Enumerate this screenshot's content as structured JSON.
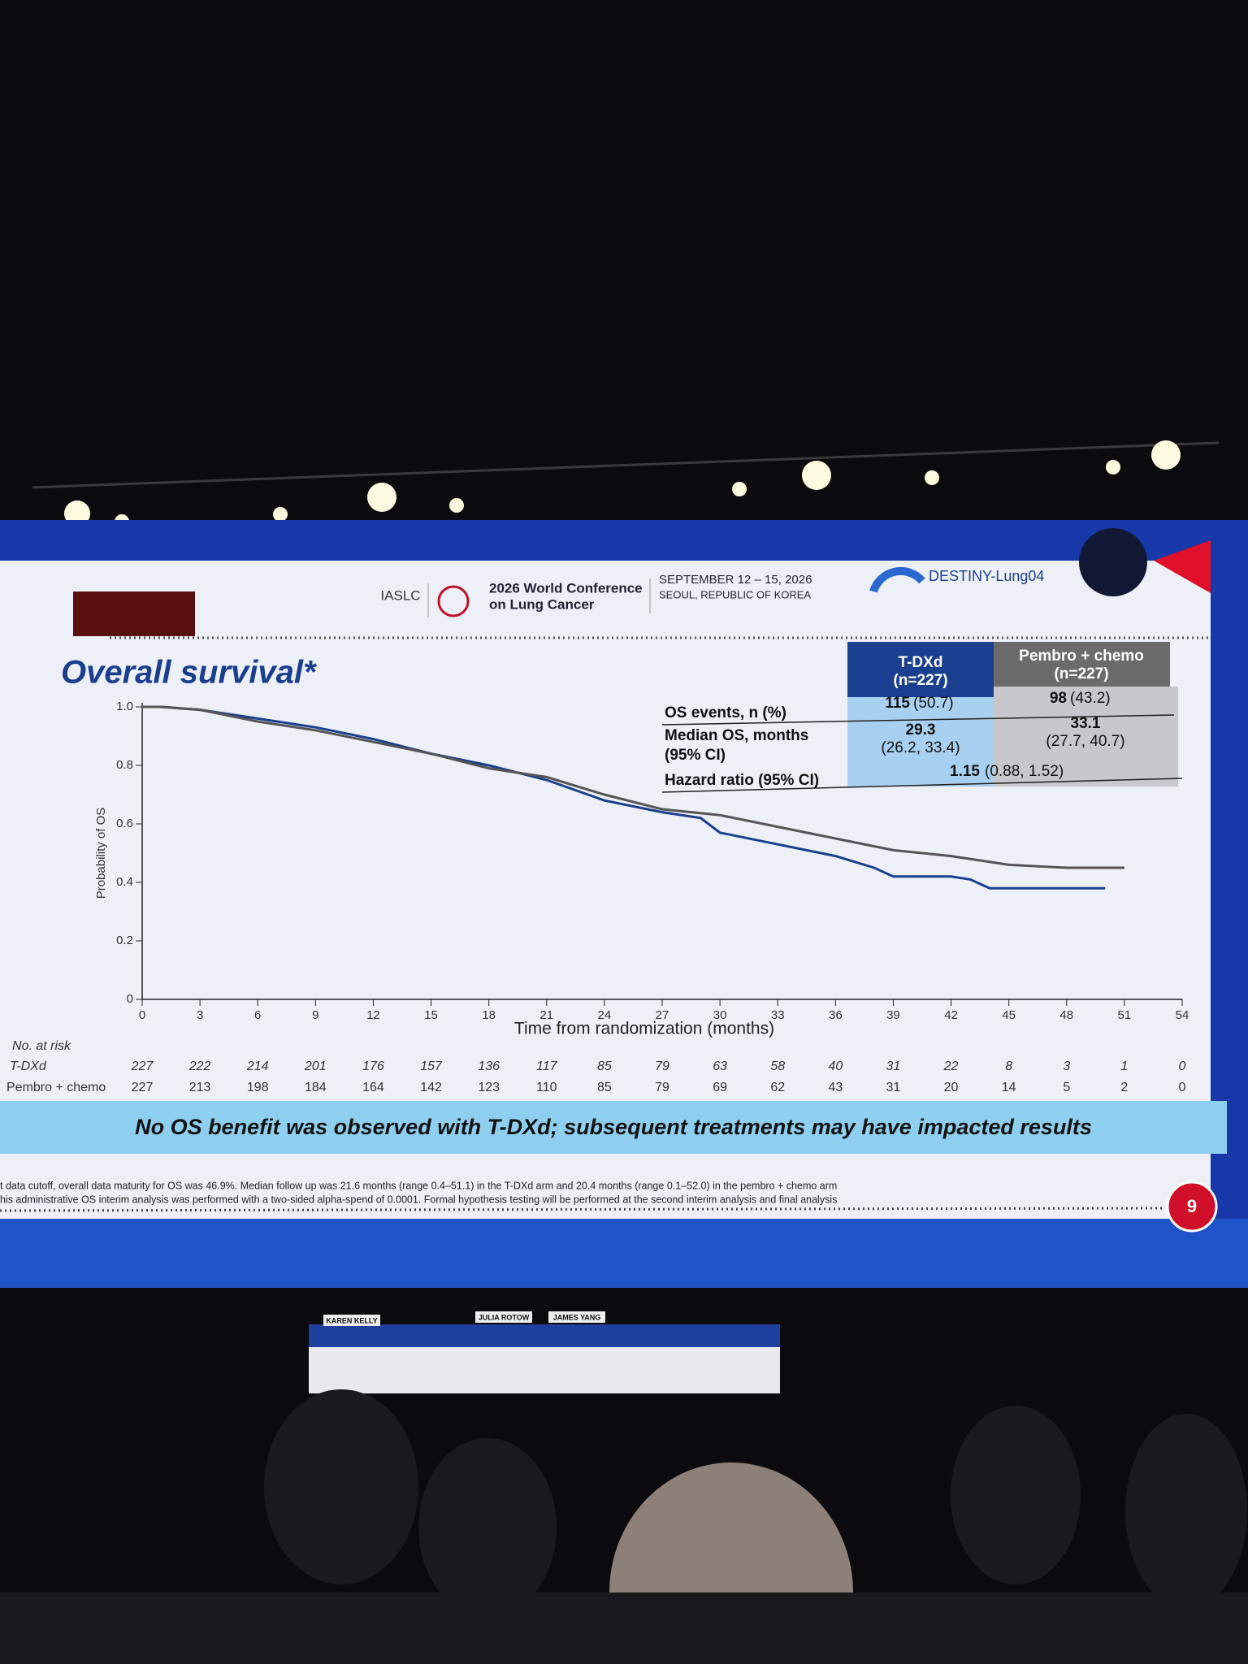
{
  "slide": {
    "header": {
      "society": "IASLC",
      "conference": [
        "2026 World Conference",
        "on Lung Cancer"
      ],
      "dates": "SEPTEMBER 12 – 15, 2026",
      "location": "SEOUL, REPUBLIC OF KOREA",
      "trial": "DESTINY-Lung04"
    },
    "table": {
      "columns": [
        [
          "T-DXd",
          "(n=227)"
        ],
        [
          "Pembro + chemo",
          "(n=227)"
        ]
      ],
      "rows": [
        {
          "label": [
            "OS events, n (%)"
          ],
          "cells": [
            [
              "115",
              "(50.7)"
            ],
            [
              "98",
              "(43.2)"
            ]
          ]
        },
        {
          "label": [
            "Median OS, months",
            "(95% CI)"
          ],
          "cells": [
            [
              "29.3",
              "(26.2, 33.4)"
            ],
            [
              "33.1",
              "(27.7, 40.7)"
            ]
          ]
        },
        {
          "label": [
            "Hazard ratio (95% CI)"
          ],
          "cells": [
            [
              "1.15",
              "(0.88, 1.52)"
            ]
          ]
        }
      ]
    },
    "banner": "No OS benefit was observed with T-DXd; subsequent treatments may have impacted results",
    "footnotes": [
      "t data cutoff, overall data maturity for OS was 46.9%. Median follow up was 21.6 months (range 0.4–51.1) in the T-DXd arm and 20.4 months (range 0.1–52.0) in the pembro + chemo arm",
      "his administrative OS interim analysis was performed with a two-sided alpha-spend of 0.0001. Formal hypothesis testing will be performed at the second interim analysis and final analysis"
    ],
    "page_number": "9",
    "name_cards": [
      "KAREN KELLY",
      "JULIA ROTOW",
      "JAMES YANG"
    ]
  },
  "chart_data": {
    "type": "line",
    "title": "Overall survival*",
    "xlabel": "Time from randomization (months)",
    "ylabel": "Probability of OS",
    "xlim": [
      0,
      54
    ],
    "ylim": [
      0,
      1
    ],
    "xticks": [
      0,
      3,
      6,
      9,
      12,
      15,
      18,
      21,
      24,
      27,
      30,
      33,
      36,
      39,
      42,
      45,
      48,
      51,
      54
    ],
    "yticks": [
      0,
      0.2,
      0.4,
      0.6,
      0.8,
      {
        "value": 1,
        "label": "1.0"
      }
    ],
    "series": [
      {
        "name": "T-DXd",
        "color": "#1a3f8f",
        "x": [
          0,
          1,
          3,
          6,
          9,
          12,
          15,
          18,
          21,
          24,
          27,
          29,
          30,
          33,
          36,
          38,
          39,
          42,
          43,
          44,
          47,
          50
        ],
        "values": [
          1,
          1,
          0.99,
          0.96,
          0.93,
          0.89,
          0.84,
          0.8,
          0.75,
          0.68,
          0.64,
          0.62,
          0.57,
          0.53,
          0.49,
          0.45,
          0.42,
          0.42,
          0.41,
          0.38,
          0.38,
          0.38
        ]
      },
      {
        "name": "Pembro + chemo",
        "color": "#555555",
        "x": [
          0,
          1,
          3,
          6,
          9,
          12,
          15,
          18,
          21,
          24,
          27,
          30,
          33,
          36,
          39,
          42,
          45,
          48,
          51
        ],
        "values": [
          1,
          1,
          0.99,
          0.95,
          0.92,
          0.88,
          0.84,
          0.79,
          0.76,
          0.7,
          0.65,
          0.63,
          0.59,
          0.55,
          0.51,
          0.49,
          0.46,
          0.45,
          0.45
        ]
      }
    ],
    "at_risk": {
      "title": "No. at risk",
      "rows": [
        [
          227,
          222,
          214,
          201,
          176,
          157,
          136,
          117,
          85,
          79,
          63,
          58,
          40,
          31,
          22,
          8,
          3,
          1,
          0
        ],
        [
          227,
          213,
          198,
          184,
          164,
          142,
          123,
          110,
          85,
          79,
          69,
          62,
          43,
          31,
          20,
          14,
          5,
          2,
          0
        ]
      ]
    }
  }
}
